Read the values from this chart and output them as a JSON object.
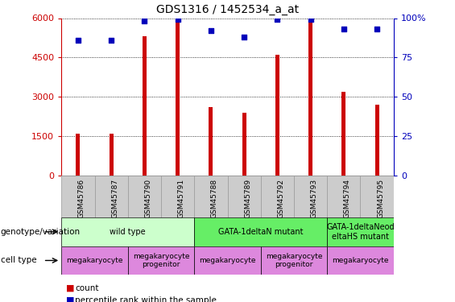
{
  "title": "GDS1316 / 1452534_a_at",
  "samples": [
    "GSM45786",
    "GSM45787",
    "GSM45790",
    "GSM45791",
    "GSM45788",
    "GSM45789",
    "GSM45792",
    "GSM45793",
    "GSM45794",
    "GSM45795"
  ],
  "counts": [
    1600,
    1600,
    5300,
    5900,
    2600,
    2400,
    4600,
    6000,
    3200,
    2700
  ],
  "percentiles": [
    86,
    86,
    98,
    99,
    92,
    88,
    99,
    99,
    93,
    93
  ],
  "ylim_left": [
    0,
    6000
  ],
  "ylim_right": [
    0,
    100
  ],
  "yticks_left": [
    0,
    1500,
    3000,
    4500,
    6000
  ],
  "yticks_right": [
    0,
    25,
    50,
    75,
    100
  ],
  "bar_color": "#cc0000",
  "dot_color": "#0000bb",
  "left_axis_color": "#cc0000",
  "right_axis_color": "#0000bb",
  "grid_color": "#000000",
  "tick_bg_color": "#cccccc",
  "genotype_groups": [
    {
      "label": "wild type",
      "start": 0,
      "end": 4,
      "color": "#ccffcc"
    },
    {
      "label": "GATA-1deltaN mutant",
      "start": 4,
      "end": 8,
      "color": "#66ee66"
    },
    {
      "label": "GATA-1deltaNeod\neltaHS mutant",
      "start": 8,
      "end": 10,
      "color": "#66ee66"
    }
  ],
  "cell_type_groups": [
    {
      "label": "megakaryocyte",
      "start": 0,
      "end": 2,
      "color": "#dd88dd"
    },
    {
      "label": "megakaryocyte\nprogenitor",
      "start": 2,
      "end": 4,
      "color": "#dd88dd"
    },
    {
      "label": "megakaryocyte",
      "start": 4,
      "end": 6,
      "color": "#dd88dd"
    },
    {
      "label": "megakaryocyte\nprogenitor",
      "start": 6,
      "end": 8,
      "color": "#dd88dd"
    },
    {
      "label": "megakaryocyte",
      "start": 8,
      "end": 10,
      "color": "#dd88dd"
    }
  ],
  "geno_label": "genotype/variation",
  "cell_label": "cell type",
  "legend_count_label": "count",
  "legend_pct_label": "percentile rank within the sample",
  "bar_width": 0.12
}
